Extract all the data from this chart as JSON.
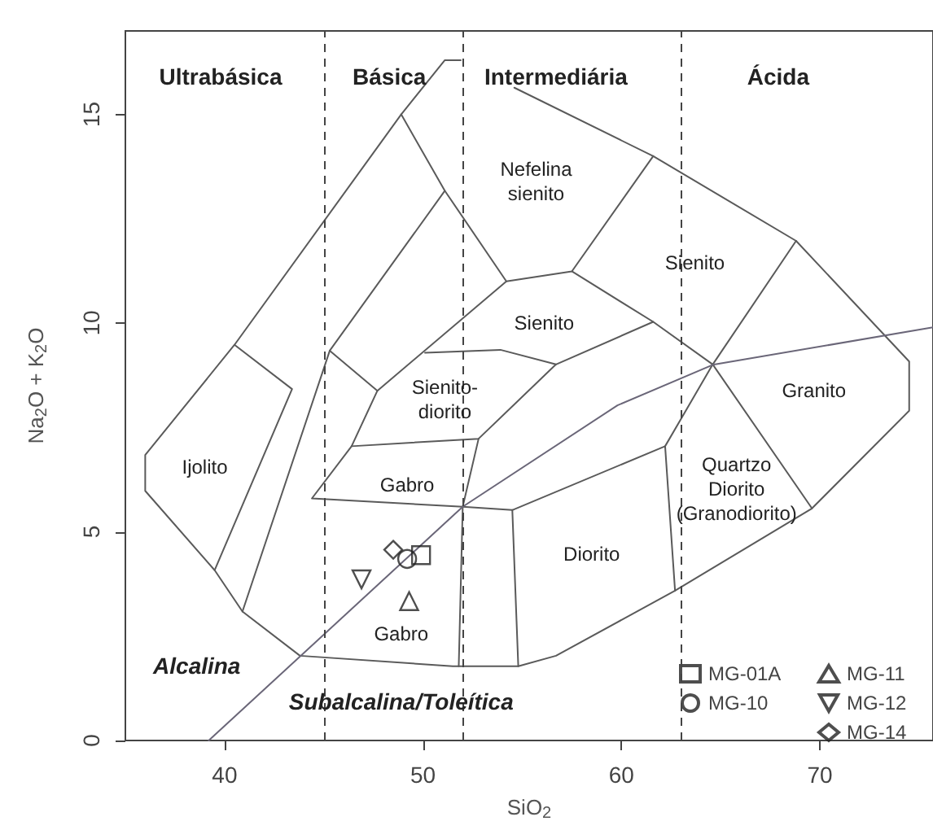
{
  "chart_data": {
    "type": "scatter",
    "xlabel": "SiO$_{2}$",
    "ylabel": "Na$_{2}$O + K$_{2}$O",
    "xlim": [
      35,
      75.7
    ],
    "ylim": [
      0,
      17
    ],
    "xticks": [
      40,
      50,
      60,
      70
    ],
    "yticks": [
      0,
      5,
      10,
      15
    ],
    "grid": false,
    "legend": "bottom right",
    "series": [
      {
        "name": "MG-01A",
        "color": "#222222",
        "marker": "square",
        "x": [
          49.9
        ],
        "values": [
          4.44
        ]
      },
      {
        "name": "MG-10",
        "color": "#222222",
        "marker": "circle",
        "x": [
          49.2
        ],
        "values": [
          4.35
        ]
      },
      {
        "name": "MG-11",
        "color": "#222222",
        "marker": "triangle",
        "x": [
          49.3
        ],
        "values": [
          3.34
        ]
      },
      {
        "name": "MG-12",
        "color": "#222222",
        "marker": "triangle-down",
        "x": [
          46.9
        ],
        "values": [
          3.86
        ]
      },
      {
        "name": "MG-14",
        "color": "#222222",
        "marker": "diamond",
        "x": [
          48.5
        ],
        "values": [
          4.57
        ]
      },
      {
        "type": "line",
        "color": "#5a5a5a",
        "marker": "none",
        "x": [
          51.9,
          51.1,
          48.9,
          40.5,
          36.0,
          36.0,
          39.5,
          40.9,
          43.8,
          51.5,
          54.8,
          56.7,
          62.7,
          69.6,
          74.5,
          74.5,
          68.8,
          61.6,
          54.6
        ],
        "values": [
          16.3,
          16.3,
          15.0,
          9.48,
          6.84,
          5.98,
          4.08,
          3.09,
          2.03,
          1.78,
          1.78,
          2.03,
          3.59,
          5.56,
          7.9,
          9.08,
          11.97,
          14.0,
          15.64
        ]
      },
      {
        "type": "line",
        "color": "#5a5a5a",
        "marker": "none",
        "x": [
          40.5,
          43.4,
          39.5
        ],
        "values": [
          9.48,
          8.42,
          4.08
        ]
      },
      {
        "type": "line",
        "color": "#5a5a5a",
        "marker": "none",
        "x": [
          40.9,
          45.3,
          51.1
        ],
        "values": [
          3.09,
          9.34,
          13.17
        ]
      },
      {
        "type": "line",
        "color": "#5a5a5a",
        "marker": "none",
        "x": [
          48.9,
          51.1,
          54.2,
          57.5,
          61.6
        ],
        "values": [
          15.0,
          13.17,
          11.0,
          11.24,
          14.0
        ]
      },
      {
        "type": "line",
        "color": "#5a5a5a",
        "marker": "none",
        "x": [
          57.5,
          61.6,
          64.6,
          69.6
        ],
        "values": [
          11.24,
          10.03,
          9.01,
          5.56
        ]
      },
      {
        "type": "line",
        "color": "#5a5a5a",
        "marker": "none",
        "x": [
          68.8,
          64.6,
          62.2,
          62.7
        ],
        "values": [
          11.97,
          9.01,
          7.05,
          3.59
        ]
      },
      {
        "type": "line",
        "color": "#5a5a5a",
        "marker": "none",
        "x": [
          45.3,
          47.7,
          54.2
        ],
        "values": [
          9.34,
          8.38,
          11.0
        ]
      },
      {
        "type": "line",
        "color": "#5a5a5a",
        "marker": "none",
        "x": [
          47.7,
          46.4,
          44.4,
          52.0,
          54.5,
          62.2
        ],
        "values": [
          8.38,
          7.05,
          5.8,
          5.6,
          5.52,
          7.05
        ]
      },
      {
        "type": "line",
        "color": "#5a5a5a",
        "marker": "none",
        "x": [
          46.4,
          52.8,
          56.7,
          61.6
        ],
        "values": [
          7.05,
          7.23,
          9.01,
          10.03
        ]
      },
      {
        "type": "line",
        "color": "#5a5a5a",
        "marker": "none",
        "x": [
          50.1,
          53.9,
          56.7
        ],
        "values": [
          9.29,
          9.36,
          9.01
        ]
      },
      {
        "type": "line",
        "color": "#5a5a5a",
        "marker": "none",
        "x": [
          52.8,
          52.0,
          51.8
        ],
        "values": [
          7.23,
          5.6,
          1.78
        ]
      },
      {
        "type": "line",
        "color": "#5a5a5a",
        "marker": "none",
        "x": [
          54.5,
          54.8
        ],
        "values": [
          5.52,
          1.78
        ]
      },
      {
        "type": "line",
        "color": "#6a6678",
        "marker": "none",
        "x": [
          39.2,
          52.0,
          59.8,
          64.6,
          75.7
        ],
        "values": [
          0.0,
          5.6,
          8.03,
          9.0,
          9.9
        ]
      }
    ],
    "ref_lines": [
      {
        "axis": "x",
        "value": 45,
        "color": "#444444",
        "line_style": "dashed"
      },
      {
        "axis": "x",
        "value": 52,
        "color": "#444444",
        "line_style": "dashed"
      },
      {
        "axis": "x",
        "value": 63,
        "color": "#444444",
        "line_style": "dashed"
      }
    ],
    "annotations": [
      "Ultrabásica",
      "Básica",
      "Intermediária",
      "Ácida",
      "Nefelina\nsienito",
      "Sienito",
      "Sienito",
      "Sienito-\ndiorito",
      "Granito",
      "Ijolito",
      "Gabro",
      "Quartzo\nDiorito\n(Granodiorito)",
      "Diorito",
      "Gabro",
      "Alcalina",
      "Subalcalina/Toleítica"
    ]
  }
}
